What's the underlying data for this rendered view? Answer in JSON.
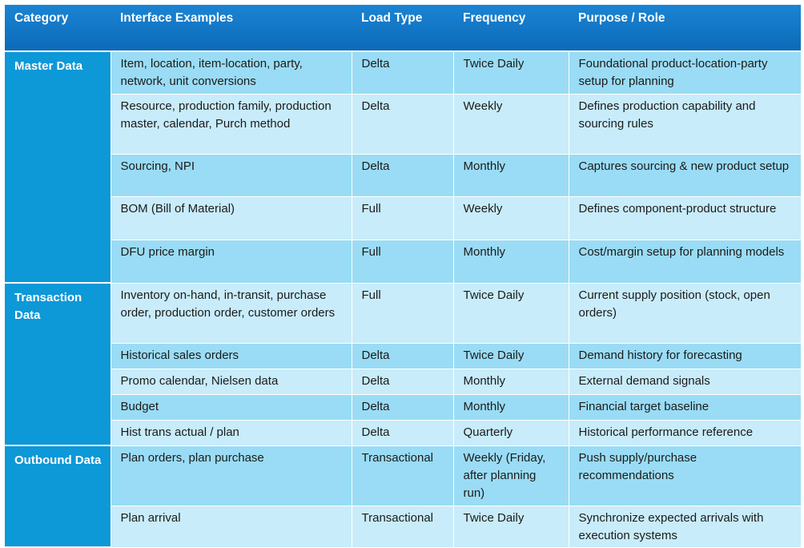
{
  "table": {
    "headers": [
      "Category",
      "Interface Examples",
      "Load Type",
      "Frequency",
      "Purpose / Role"
    ],
    "groups": [
      {
        "category": "Master Data",
        "rows": [
          {
            "interface": "Item, location, item-location, party, network, unit conversions",
            "load": "Delta",
            "frequency": "Twice Daily",
            "purpose": "Foundational product-location-party setup for planning"
          },
          {
            "interface": "Resource, production family, production master, calendar, Purch method",
            "load": "Delta",
            "frequency": "Weekly",
            "purpose": "Defines production capability and sourcing rules"
          },
          {
            "interface": "Sourcing, NPI",
            "load": "Delta",
            "frequency": "Monthly",
            "purpose": "Captures sourcing & new product setup"
          },
          {
            "interface": "BOM (Bill of Material)",
            "load": "Full",
            "frequency": "Weekly",
            "purpose": "Defines component-product structure"
          },
          {
            "interface": "DFU price margin",
            "load": "Full",
            "frequency": "Monthly",
            "purpose": "Cost/margin setup for planning models"
          }
        ]
      },
      {
        "category": "Transaction Data",
        "rows": [
          {
            "interface": "Inventory on-hand, in-transit, purchase order, production order, customer orders",
            "load": "Full",
            "frequency": "Twice Daily",
            "purpose": "Current supply position (stock, open orders)"
          },
          {
            "interface": "Historical sales orders",
            "load": "Delta",
            "frequency": "Twice Daily",
            "purpose": "Demand history for forecasting"
          },
          {
            "interface": "Promo calendar, Nielsen data",
            "load": "Delta",
            "frequency": "Monthly",
            "purpose": "External demand signals"
          },
          {
            "interface": "Budget",
            "load": "Delta",
            "frequency": "Monthly",
            "purpose": "Financial target baseline"
          },
          {
            "interface": "Hist trans actual / plan",
            "load": "Delta",
            "frequency": "Quarterly",
            "purpose": "Historical performance reference"
          }
        ]
      },
      {
        "category": "Outbound Data",
        "rows": [
          {
            "interface": "Plan orders, plan purchase",
            "load": "Transactional",
            "frequency": "Weekly (Friday, after planning run)",
            "purpose": "Push supply/purchase recommendations"
          },
          {
            "interface": "Plan arrival",
            "load": "Transactional",
            "frequency": "Twice Daily",
            "purpose": "Synchronize expected arrivals with execution systems"
          }
        ]
      }
    ]
  }
}
